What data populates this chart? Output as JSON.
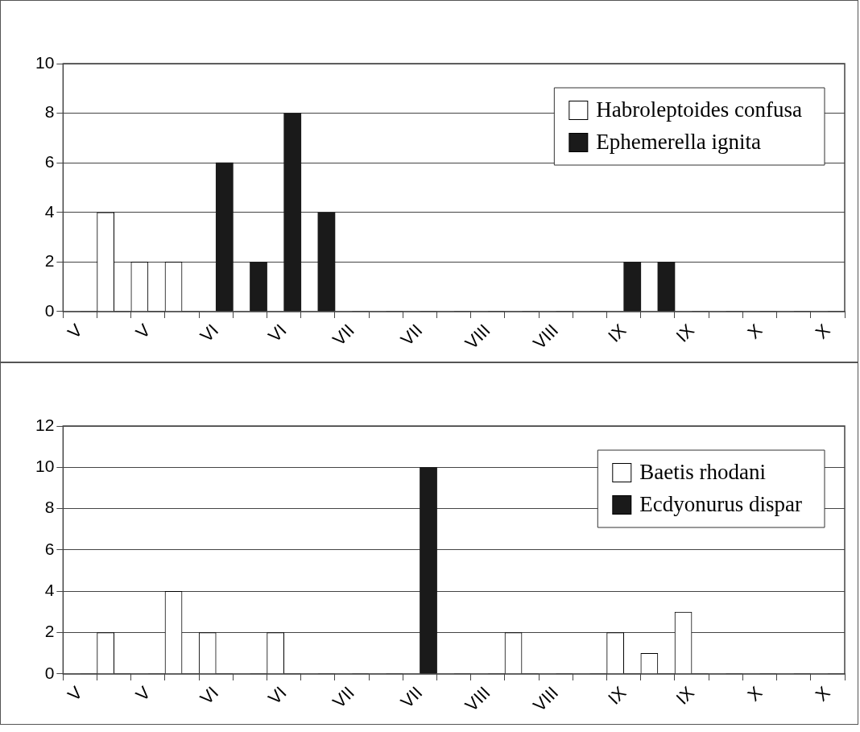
{
  "chart_data": [
    {
      "type": "bar",
      "categories": [
        "V",
        null,
        "V",
        null,
        "VI",
        null,
        "VI",
        null,
        "VII",
        null,
        "VII",
        null,
        "VIII",
        null,
        "VIII",
        null,
        "IX",
        null,
        "IX",
        null,
        "X",
        null,
        "X"
      ],
      "series": [
        {
          "name": "Habroleptoides confusa",
          "color": "#ffffff",
          "values": [
            0,
            4,
            2,
            2,
            0,
            0,
            0,
            0,
            0,
            0,
            0,
            0,
            0,
            0,
            0,
            0,
            0,
            0,
            0,
            0,
            0,
            0,
            0
          ]
        },
        {
          "name": "Ephemerella ignita",
          "color": "#1a1a1a",
          "values": [
            0,
            0,
            0,
            0,
            6,
            2,
            8,
            4,
            0,
            0,
            0,
            0,
            0,
            0,
            0,
            0,
            2,
            2,
            0,
            0,
            0,
            0,
            0
          ]
        }
      ],
      "ylim": [
        0,
        10
      ],
      "yticks": [
        0,
        2,
        4,
        6,
        8,
        10
      ],
      "grid": "y",
      "legend": "top right"
    },
    {
      "type": "bar",
      "categories": [
        "V",
        null,
        "V",
        null,
        "VI",
        null,
        "VI",
        null,
        "VII",
        null,
        "VII",
        null,
        "VIII",
        null,
        "VIII",
        null,
        "IX",
        null,
        "IX",
        null,
        "X",
        null,
        "X"
      ],
      "series": [
        {
          "name": "Baetis rhodani",
          "color": "#ffffff",
          "values": [
            0,
            2,
            0,
            4,
            2,
            0,
            2,
            0,
            0,
            0,
            0,
            0,
            0,
            2,
            0,
            0,
            2,
            1,
            3,
            0,
            0,
            0,
            0
          ]
        },
        {
          "name": "Ecdyonurus dispar",
          "color": "#1a1a1a",
          "values": [
            0,
            0,
            0,
            0,
            0,
            0,
            0,
            0,
            0,
            0,
            10,
            0,
            0,
            0,
            0,
            0,
            0,
            0,
            0,
            0,
            0,
            0,
            0
          ]
        }
      ],
      "ylim": [
        0,
        12
      ],
      "yticks": [
        0,
        2,
        4,
        6,
        8,
        10,
        12
      ],
      "grid": "y",
      "legend": "top right"
    }
  ]
}
